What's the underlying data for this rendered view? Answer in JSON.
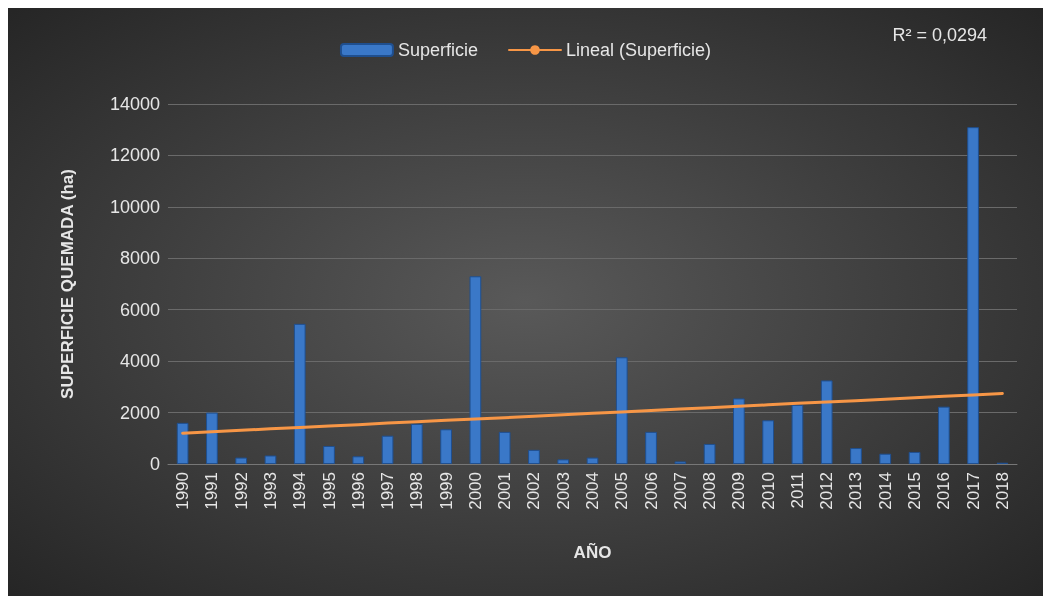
{
  "chart_data": {
    "type": "bar",
    "xlabel": "AÑO",
    "ylabel": "SUPERFICIE QUEMADA (ha)",
    "categories": [
      "1990",
      "1991",
      "1992",
      "1993",
      "1994",
      "1995",
      "1996",
      "1997",
      "1998",
      "1999",
      "2000",
      "2001",
      "2002",
      "2003",
      "2004",
      "2005",
      "2006",
      "2007",
      "2008",
      "2009",
      "2010",
      "2011",
      "2012",
      "2013",
      "2014",
      "2015",
      "2016",
      "2017",
      "2018"
    ],
    "series": [
      {
        "name": "Superficie",
        "color": "#3a78c8",
        "values": [
          1600,
          2000,
          250,
          330,
          5450,
          700,
          300,
          1100,
          1560,
          1350,
          7300,
          1250,
          550,
          180,
          250,
          4150,
          1250,
          100,
          780,
          2550,
          1700,
          2300,
          3250,
          620,
          400,
          470,
          2230,
          13100,
          50
        ]
      },
      {
        "name": "Lineal (Superficie)",
        "type": "line",
        "color": "#f79646",
        "values": [
          1200,
          1250,
          1310,
          1370,
          1420,
          1480,
          1530,
          1590,
          1640,
          1700,
          1750,
          1800,
          1860,
          1920,
          1970,
          2020,
          2080,
          2140,
          2190,
          2250,
          2300,
          2360,
          2410,
          2460,
          2520,
          2580,
          2630,
          2680,
          2740
        ]
      }
    ],
    "annotations": [
      "R² = 0,0294"
    ],
    "ylim": [
      0,
      14000
    ],
    "yticks": [
      0,
      2000,
      4000,
      6000,
      8000,
      10000,
      12000,
      14000
    ],
    "grid": "y",
    "legend": "top",
    "marker": "none"
  }
}
